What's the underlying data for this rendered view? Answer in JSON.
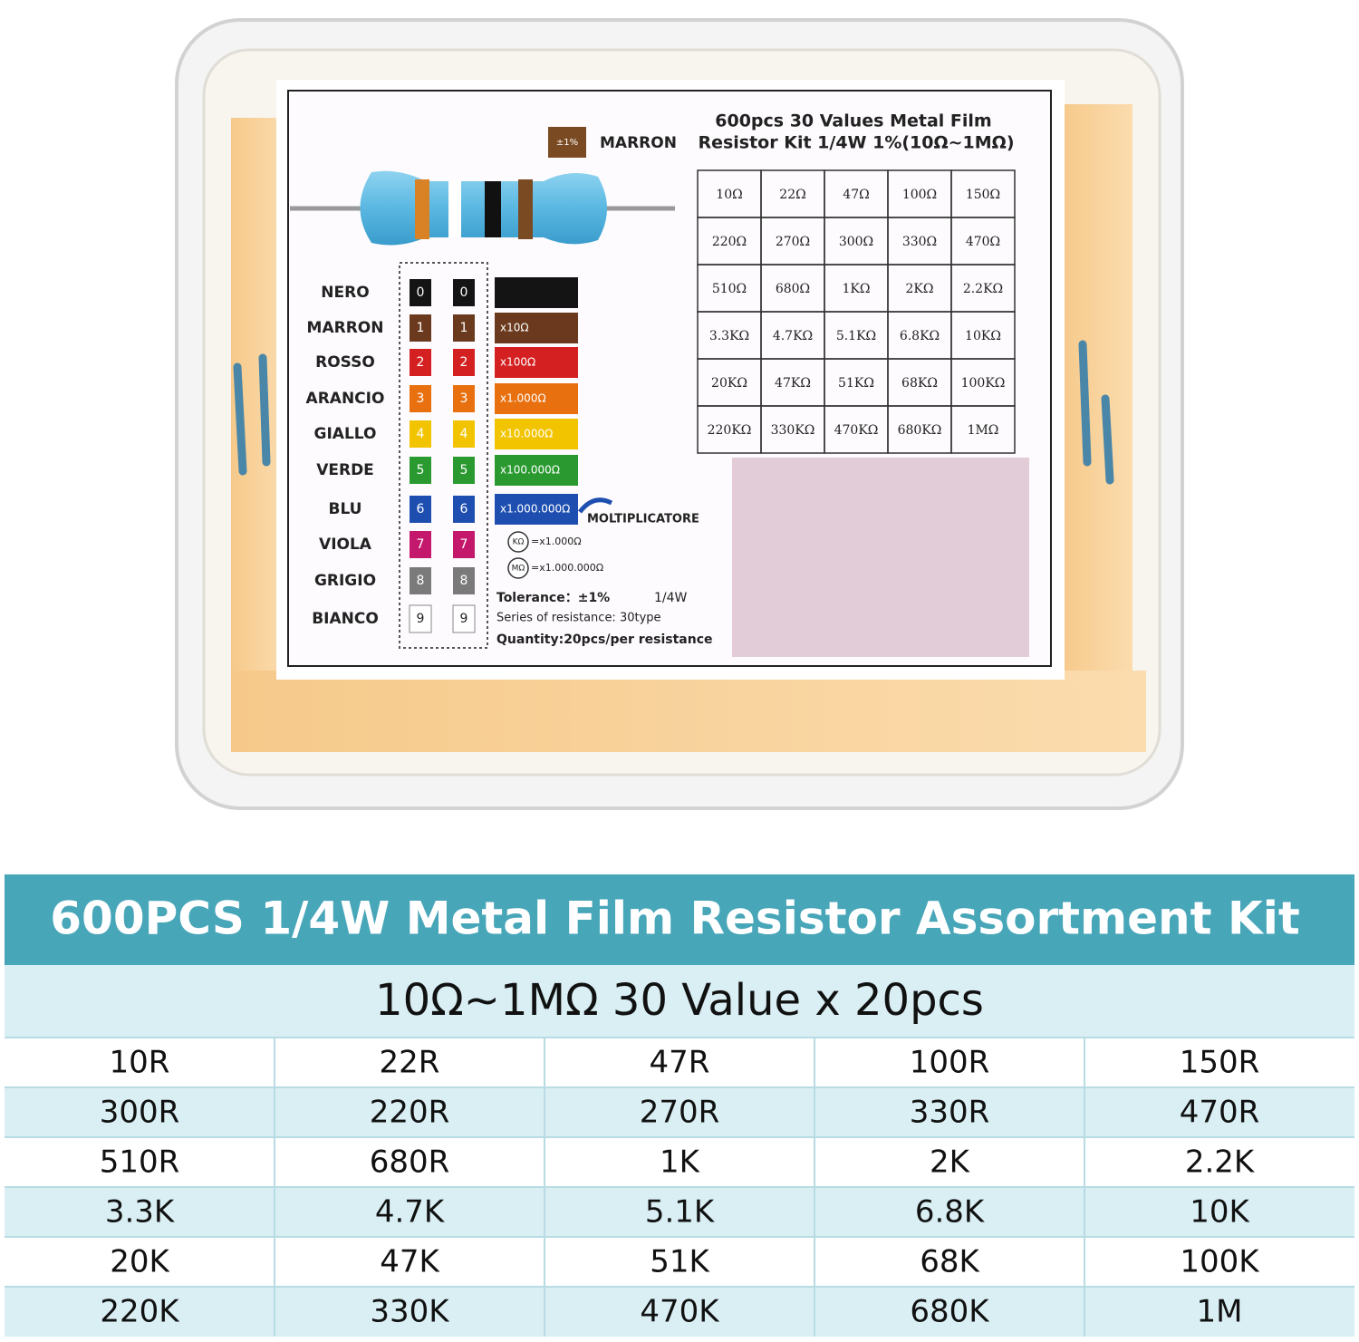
{
  "label": {
    "title_lines": [
      "600pcs 30 Values Metal Film",
      "Resistor Kit 1/4W 1%(10Ω~1MΩ)"
    ],
    "tolerance_chip": "±1%",
    "tolerance_name": "MARRON",
    "bands": [
      {
        "name": "NERO",
        "digit": "0",
        "color": "#141414"
      },
      {
        "name": "MARRON",
        "digit": "1",
        "color": "#6b3a1e",
        "multiplier": "x10Ω"
      },
      {
        "name": "ROSSO",
        "digit": "2",
        "color": "#d42020",
        "multiplier": "x100Ω"
      },
      {
        "name": "ARANCIO",
        "digit": "3",
        "color": "#e8700f",
        "multiplier": "x1.000Ω"
      },
      {
        "name": "GIALLO",
        "digit": "4",
        "color": "#f2c400",
        "multiplier": "x10.000Ω"
      },
      {
        "name": "VERDE",
        "digit": "5",
        "color": "#2a9a30",
        "multiplier": "x100.000Ω"
      },
      {
        "name": "BLU",
        "digit": "6",
        "color": "#1e4fb0",
        "multiplier": "x1.000.000Ω"
      },
      {
        "name": "VIOLA",
        "digit": "7",
        "color": "#c4186c"
      },
      {
        "name": "GRIGIO",
        "digit": "8",
        "color": "#7a7a7a"
      },
      {
        "name": "BIANCO",
        "digit": "9",
        "color": "#ffffff"
      }
    ],
    "multiplier_caption": "MOLTIPLICATORE",
    "units": [
      {
        "symbol": "KΩ",
        "meaning": "=x1.000Ω"
      },
      {
        "symbol": "MΩ",
        "meaning": "=x1.000.000Ω"
      }
    ],
    "notes": [
      "Tolerance：±1%",
      "1/4W",
      "Series of resistance: 30type",
      "Quantity:20pcs/per resistance"
    ],
    "values": [
      [
        "10Ω",
        "22Ω",
        "47Ω",
        "100Ω",
        "150Ω"
      ],
      [
        "220Ω",
        "270Ω",
        "300Ω",
        "330Ω",
        "470Ω"
      ],
      [
        "510Ω",
        "680Ω",
        "1KΩ",
        "2KΩ",
        "2.2KΩ"
      ],
      [
        "3.3KΩ",
        "4.7KΩ",
        "5.1KΩ",
        "6.8KΩ",
        "10KΩ"
      ],
      [
        "20KΩ",
        "47KΩ",
        "51KΩ",
        "68KΩ",
        "100KΩ"
      ],
      [
        "220KΩ",
        "330KΩ",
        "470KΩ",
        "680KΩ",
        "1MΩ"
      ]
    ]
  },
  "table": {
    "title": "600PCS 1/4W Metal Film Resistor Assortment Kit",
    "subtitle": "10Ω~1MΩ 30 Value x 20pcs",
    "rows": [
      [
        "10R",
        "22R",
        "47R",
        "100R",
        "150R"
      ],
      [
        "300R",
        "220R",
        "270R",
        "330R",
        "470R"
      ],
      [
        "510R",
        "680R",
        "1K",
        "2K",
        "2.2K"
      ],
      [
        "3.3K",
        "4.7K",
        "5.1K",
        "6.8K",
        "10K"
      ],
      [
        "20K",
        "47K",
        "51K",
        "68K",
        "100K"
      ],
      [
        "220K",
        "330K",
        "470K",
        "680K",
        "1M"
      ]
    ]
  }
}
